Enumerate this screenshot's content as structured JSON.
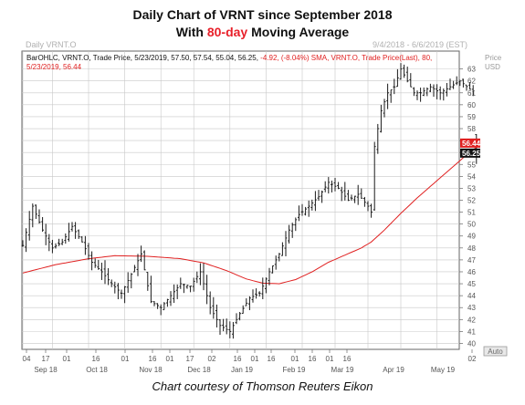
{
  "title_line1": "Daily Chart of VRNT since September 2018",
  "title_line2_prefix": "With ",
  "title_line2_highlight": "80-day",
  "title_line2_suffix": " Moving Average",
  "caption": "Chart courtesy of Thomson Reuters Eikon",
  "colors": {
    "highlight": "#e8202a",
    "bars": "#1a1a1a",
    "sma": "#e02020",
    "grid": "#c8c8c8",
    "frame": "#666666"
  },
  "chart_data": {
    "type": "ohlc",
    "top_left": "Daily VRNT.O",
    "top_right": "9/4/2018 - 6/6/2019 (EST)",
    "legend_line1_black": "BarOHLC, VRNT.O, Trade Price, 5/23/2019, 57.50, 57.54, 55.04, 56.25,",
    "legend_line1_red": "-4.92, (-8.04%)",
    "legend_line1_sma": "SMA, VRNT.O, Trade Price(Last),  80,",
    "legend_line2": "5/23/2019, 56.44",
    "price_axis_label": [
      "Price",
      "USD"
    ],
    "yticks": [
      40,
      41,
      42,
      43,
      44,
      45,
      46,
      47,
      48,
      49,
      50,
      51,
      52,
      53,
      54,
      55,
      56,
      57,
      58,
      59,
      60,
      61,
      62,
      63
    ],
    "ytick_labels": [
      "40",
      "41",
      "42",
      "43",
      "44",
      "45",
      "46",
      "47",
      "48",
      "49",
      "50",
      "51",
      "52",
      "53",
      "54",
      "55",
      "",
      "",
      "58",
      "59",
      "60",
      "61",
      "62",
      "63"
    ],
    "ylim": [
      39.5,
      64.5
    ],
    "last_close_label": "56.25",
    "sma_value_label": "56.44",
    "auto_label": "Auto",
    "xtick_labels": [
      "04",
      "17",
      "01",
      "16",
      "01",
      "16",
      "01",
      "17",
      "02",
      "16",
      "01",
      "16",
      "01",
      "16",
      "01",
      "16",
      "02"
    ],
    "month_labels": [
      "Sep 18",
      "Oct 18",
      "Nov 18",
      "Dec 18",
      "Jan 19",
      "Feb 19",
      "Mar 19",
      "Apr 19",
      "May 19"
    ],
    "close_anchors": [
      [
        0,
        48.2
      ],
      [
        3,
        51.5
      ],
      [
        6,
        49.5
      ],
      [
        9,
        48.0
      ],
      [
        12,
        48.5
      ],
      [
        15,
        49.8
      ],
      [
        18,
        48.5
      ],
      [
        21,
        46.8
      ],
      [
        24,
        46.0
      ],
      [
        27,
        45.0
      ],
      [
        30,
        44.2
      ],
      [
        33,
        45.8
      ],
      [
        36,
        47.5
      ],
      [
        39,
        43.5
      ],
      [
        42,
        43.0
      ],
      [
        45,
        44.0
      ],
      [
        48,
        45.0
      ],
      [
        51,
        44.8
      ],
      [
        54,
        46.0
      ],
      [
        57,
        43.0
      ],
      [
        60,
        41.5
      ],
      [
        63,
        41.0
      ],
      [
        66,
        42.5
      ],
      [
        69,
        43.8
      ],
      [
        72,
        44.2
      ],
      [
        75,
        46.0
      ],
      [
        78,
        47.5
      ],
      [
        81,
        49.5
      ],
      [
        84,
        50.8
      ],
      [
        87,
        51.5
      ],
      [
        90,
        52.3
      ],
      [
        93,
        53.5
      ],
      [
        96,
        53.0
      ],
      [
        99,
        52.0
      ],
      [
        102,
        52.5
      ],
      [
        105,
        51.5
      ],
      [
        106,
        51.0
      ],
      [
        107,
        56.5
      ],
      [
        109,
        59.5
      ],
      [
        111,
        61.0
      ],
      [
        113,
        61.5
      ],
      [
        115,
        63.0
      ],
      [
        117,
        62.0
      ],
      [
        119,
        61.0
      ],
      [
        121,
        61.0
      ],
      [
        124,
        61.5
      ],
      [
        127,
        61.0
      ],
      [
        130,
        61.5
      ],
      [
        133,
        62.0
      ],
      [
        136,
        61.3
      ],
      [
        137,
        61.17
      ],
      [
        138,
        56.25
      ]
    ],
    "sma_anchors": [
      [
        0,
        45.9
      ],
      [
        10,
        46.6
      ],
      [
        20,
        47.1
      ],
      [
        28,
        47.35
      ],
      [
        38,
        47.3
      ],
      [
        48,
        47.1
      ],
      [
        55,
        46.75
      ],
      [
        62,
        46.1
      ],
      [
        68,
        45.4
      ],
      [
        73,
        45.05
      ],
      [
        78,
        45.0
      ],
      [
        83,
        45.35
      ],
      [
        88,
        46.0
      ],
      [
        93,
        46.8
      ],
      [
        98,
        47.4
      ],
      [
        103,
        48.0
      ],
      [
        106,
        48.5
      ],
      [
        110,
        49.5
      ],
      [
        115,
        50.9
      ],
      [
        120,
        52.2
      ],
      [
        125,
        53.4
      ],
      [
        130,
        54.6
      ],
      [
        135,
        55.8
      ],
      [
        138,
        56.44
      ]
    ]
  }
}
